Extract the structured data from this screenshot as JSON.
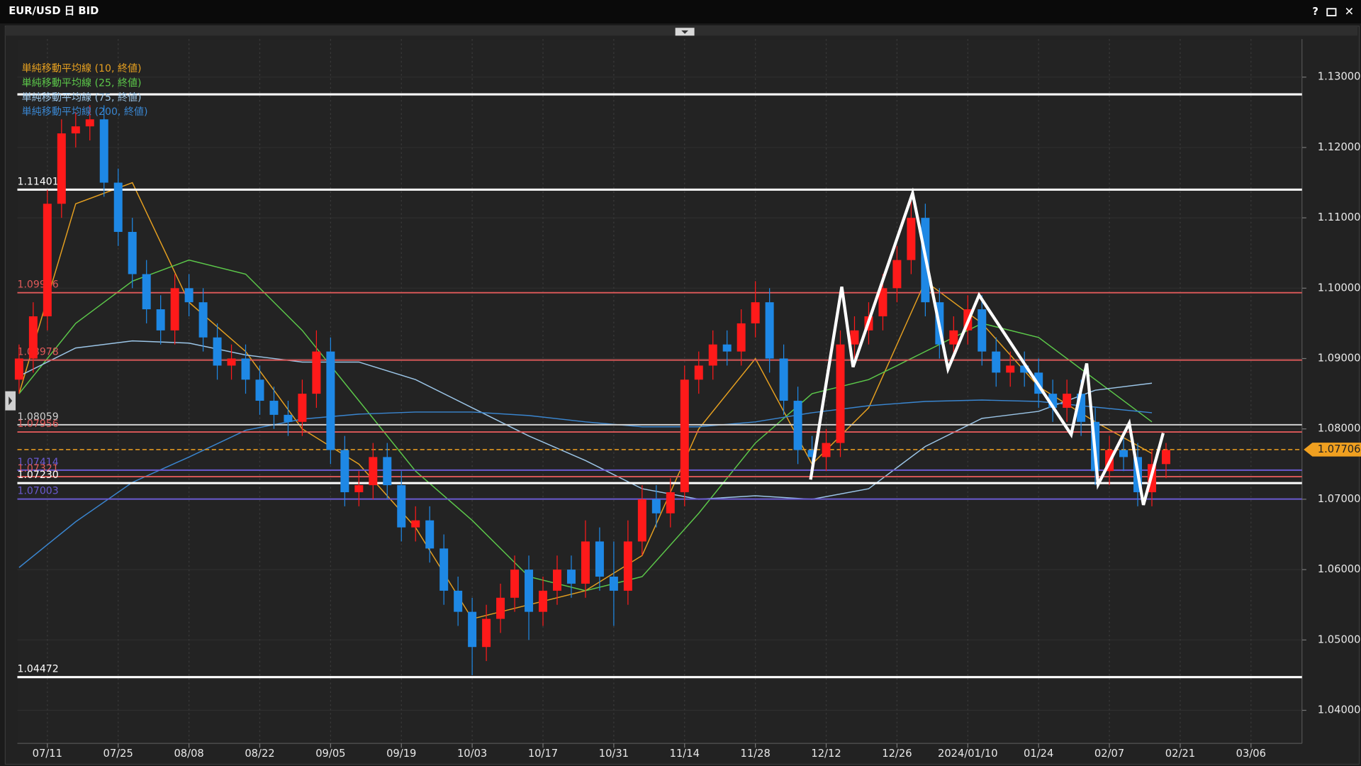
{
  "chart_data": {
    "type": "candlestick",
    "title": "EUR/USD 日 BID",
    "up_color": "#ff1a1a",
    "down_color": "#1e88e5",
    "ylim": [
      1.0353,
      1.1354
    ],
    "xlim": [
      -0.12,
      90.6
    ],
    "grid": true,
    "yticks": [
      {
        "value": 1.04,
        "label": "1.04000"
      },
      {
        "value": 1.05,
        "label": "1.05000"
      },
      {
        "value": 1.06,
        "label": "1.06000"
      },
      {
        "value": 1.07,
        "label": "1.07000"
      },
      {
        "value": 1.08,
        "label": "1.08000"
      },
      {
        "value": 1.09,
        "label": "1.09000"
      },
      {
        "value": 1.1,
        "label": "1.10000"
      },
      {
        "value": 1.11,
        "label": "1.11000"
      },
      {
        "value": 1.12,
        "label": "1.12000"
      },
      {
        "value": 1.13,
        "label": "1.13000"
      }
    ],
    "xticks": [
      {
        "value": 2,
        "label": "07/11"
      },
      {
        "value": 7,
        "label": "07/25"
      },
      {
        "value": 12,
        "label": "08/08"
      },
      {
        "value": 17,
        "label": "08/22"
      },
      {
        "value": 22,
        "label": "09/05"
      },
      {
        "value": 27,
        "label": "09/19"
      },
      {
        "value": 32,
        "label": "10/03"
      },
      {
        "value": 37,
        "label": "10/17"
      },
      {
        "value": 42,
        "label": "10/31"
      },
      {
        "value": 47,
        "label": "11/14"
      },
      {
        "value": 52,
        "label": "11/28"
      },
      {
        "value": 57,
        "label": "12/12"
      },
      {
        "value": 62,
        "label": "12/26"
      },
      {
        "value": 67,
        "label": "2024/01/10"
      },
      {
        "value": 72,
        "label": "01/24"
      },
      {
        "value": 77,
        "label": "02/07"
      },
      {
        "value": 82,
        "label": "02/21"
      },
      {
        "value": 87,
        "label": "03/06"
      }
    ],
    "candles": [
      [
        1.087,
        1.092,
        1.085,
        1.09
      ],
      [
        1.09,
        1.098,
        1.088,
        1.096
      ],
      [
        1.096,
        1.114,
        1.094,
        1.112
      ],
      [
        1.112,
        1.124,
        1.11,
        1.122
      ],
      [
        1.122,
        1.125,
        1.12,
        1.123
      ],
      [
        1.123,
        1.126,
        1.121,
        1.124
      ],
      [
        1.124,
        1.126,
        1.113,
        1.115
      ],
      [
        1.115,
        1.117,
        1.106,
        1.108
      ],
      [
        1.108,
        1.11,
        1.1,
        1.102
      ],
      [
        1.102,
        1.104,
        1.095,
        1.097
      ],
      [
        1.097,
        1.099,
        1.092,
        1.094
      ],
      [
        1.094,
        1.102,
        1.092,
        1.1
      ],
      [
        1.1,
        1.102,
        1.096,
        1.098
      ],
      [
        1.098,
        1.1,
        1.091,
        1.093
      ],
      [
        1.093,
        1.095,
        1.087,
        1.089
      ],
      [
        1.089,
        1.092,
        1.087,
        1.09
      ],
      [
        1.09,
        1.092,
        1.085,
        1.087
      ],
      [
        1.087,
        1.089,
        1.082,
        1.084
      ],
      [
        1.084,
        1.086,
        1.08,
        1.082
      ],
      [
        1.082,
        1.084,
        1.079,
        1.081
      ],
      [
        1.081,
        1.087,
        1.079,
        1.085
      ],
      [
        1.085,
        1.094,
        1.083,
        1.091
      ],
      [
        1.091,
        1.093,
        1.075,
        1.077
      ],
      [
        1.077,
        1.079,
        1.069,
        1.071
      ],
      [
        1.071,
        1.074,
        1.069,
        1.072
      ],
      [
        1.072,
        1.078,
        1.07,
        1.076
      ],
      [
        1.076,
        1.078,
        1.07,
        1.072
      ],
      [
        1.072,
        1.074,
        1.064,
        1.066
      ],
      [
        1.066,
        1.069,
        1.064,
        1.067
      ],
      [
        1.067,
        1.069,
        1.061,
        1.063
      ],
      [
        1.063,
        1.065,
        1.055,
        1.057
      ],
      [
        1.057,
        1.059,
        1.052,
        1.054
      ],
      [
        1.054,
        1.056,
        1.045,
        1.049
      ],
      [
        1.049,
        1.055,
        1.047,
        1.053
      ],
      [
        1.053,
        1.058,
        1.051,
        1.056
      ],
      [
        1.056,
        1.062,
        1.054,
        1.06
      ],
      [
        1.06,
        1.062,
        1.05,
        1.054
      ],
      [
        1.054,
        1.059,
        1.052,
        1.057
      ],
      [
        1.057,
        1.062,
        1.055,
        1.06
      ],
      [
        1.06,
        1.062,
        1.056,
        1.058
      ],
      [
        1.058,
        1.067,
        1.056,
        1.064
      ],
      [
        1.064,
        1.066,
        1.057,
        1.059
      ],
      [
        1.059,
        1.064,
        1.052,
        1.057
      ],
      [
        1.057,
        1.067,
        1.055,
        1.064
      ],
      [
        1.064,
        1.072,
        1.062,
        1.07
      ],
      [
        1.07,
        1.072,
        1.066,
        1.068
      ],
      [
        1.068,
        1.073,
        1.066,
        1.071
      ],
      [
        1.071,
        1.089,
        1.069,
        1.087
      ],
      [
        1.087,
        1.091,
        1.085,
        1.089
      ],
      [
        1.089,
        1.094,
        1.087,
        1.092
      ],
      [
        1.092,
        1.094,
        1.089,
        1.091
      ],
      [
        1.091,
        1.097,
        1.089,
        1.095
      ],
      [
        1.095,
        1.101,
        1.093,
        1.098
      ],
      [
        1.098,
        1.1,
        1.088,
        1.09
      ],
      [
        1.09,
        1.092,
        1.082,
        1.084
      ],
      [
        1.084,
        1.086,
        1.075,
        1.077
      ],
      [
        1.077,
        1.079,
        1.074,
        1.076
      ],
      [
        1.076,
        1.08,
        1.074,
        1.078
      ],
      [
        1.078,
        1.094,
        1.076,
        1.092
      ],
      [
        1.092,
        1.096,
        1.09,
        1.094
      ],
      [
        1.094,
        1.098,
        1.092,
        1.096
      ],
      [
        1.096,
        1.102,
        1.094,
        1.1
      ],
      [
        1.1,
        1.106,
        1.098,
        1.104
      ],
      [
        1.104,
        1.113,
        1.102,
        1.11
      ],
      [
        1.11,
        1.112,
        1.096,
        1.098
      ],
      [
        1.098,
        1.1,
        1.09,
        1.092
      ],
      [
        1.092,
        1.096,
        1.09,
        1.094
      ],
      [
        1.094,
        1.099,
        1.092,
        1.097
      ],
      [
        1.097,
        1.099,
        1.089,
        1.091
      ],
      [
        1.091,
        1.093,
        1.086,
        1.088
      ],
      [
        1.088,
        1.091,
        1.086,
        1.089
      ],
      [
        1.089,
        1.091,
        1.086,
        1.088
      ],
      [
        1.088,
        1.09,
        1.083,
        1.085
      ],
      [
        1.085,
        1.087,
        1.081,
        1.083
      ],
      [
        1.083,
        1.087,
        1.081,
        1.085
      ],
      [
        1.085,
        1.087,
        1.079,
        1.081
      ],
      [
        1.081,
        1.083,
        1.072,
        1.074
      ],
      [
        1.074,
        1.079,
        1.072,
        1.077
      ],
      [
        1.077,
        1.079,
        1.074,
        1.076
      ],
      [
        1.076,
        1.078,
        1.069,
        1.071
      ],
      [
        1.071,
        1.077,
        1.069,
        1.075
      ],
      [
        1.075,
        1.078,
        1.073,
        1.077
      ]
    ],
    "series": [
      {
        "name": "単純移動平均線 (10, 終値)",
        "color": "#e6a020",
        "x": [
          0,
          4,
          8,
          12,
          16,
          20,
          24,
          28,
          32,
          36,
          40,
          44,
          48,
          52,
          56,
          60,
          64,
          68,
          72,
          76,
          80
        ],
        "values": [
          1.085,
          1.112,
          1.115,
          1.098,
          1.091,
          1.08,
          1.075,
          1.066,
          1.053,
          1.055,
          1.057,
          1.062,
          1.08,
          1.09,
          1.075,
          1.083,
          1.101,
          1.095,
          1.086,
          1.081,
          1.0765
        ]
      },
      {
        "name": "単純移動平均線 (25, 終値)",
        "color": "#5cc84a",
        "x": [
          0,
          4,
          8,
          12,
          16,
          20,
          24,
          28,
          32,
          36,
          40,
          44,
          48,
          52,
          56,
          60,
          64,
          68,
          72,
          76,
          80
        ],
        "values": [
          1.085,
          1.095,
          1.101,
          1.104,
          1.102,
          1.094,
          1.084,
          1.074,
          1.067,
          1.059,
          1.057,
          1.059,
          1.068,
          1.078,
          1.085,
          1.087,
          1.091,
          1.095,
          1.093,
          1.087,
          1.081
        ]
      },
      {
        "name": "単純移動平均線 (75, 終値)",
        "color": "#9cc6e8",
        "x": [
          0,
          4,
          8,
          12,
          16,
          20,
          24,
          28,
          32,
          36,
          40,
          44,
          48,
          52,
          56,
          60,
          64,
          68,
          72,
          76,
          80
        ],
        "values": [
          1.0875,
          1.0915,
          1.0925,
          1.0922,
          1.0905,
          1.0895,
          1.0895,
          1.087,
          1.083,
          1.079,
          1.0755,
          1.0715,
          1.07,
          1.0705,
          1.07,
          1.0715,
          1.0775,
          1.0815,
          1.0825,
          1.0855,
          1.0865
        ]
      },
      {
        "name": "単純移動平均線 (200, 終値)",
        "color": "#3a86d0",
        "x": [
          0,
          4,
          8,
          12,
          16,
          20,
          24,
          28,
          32,
          36,
          40,
          44,
          48,
          52,
          56,
          60,
          64,
          68,
          72,
          76,
          80
        ],
        "values": [
          1.0603,
          1.0668,
          1.0724,
          1.076,
          1.0798,
          1.0814,
          1.0821,
          1.0824,
          1.0824,
          1.0819,
          1.081,
          1.0803,
          1.0803,
          1.081,
          1.0823,
          1.0833,
          1.0839,
          1.0841,
          1.0839,
          1.0831,
          1.0823
        ]
      }
    ],
    "levels": [
      {
        "value": 1.12755,
        "color": "#ffffff"
      },
      {
        "value": 1.11401,
        "color": "#ffffff"
      },
      {
        "value": 1.09936,
        "color": "#e05a5a"
      },
      {
        "value": 1.08978,
        "color": "#e05a5a"
      },
      {
        "value": 1.08059,
        "color": "#d0d0d0"
      },
      {
        "value": 1.07956,
        "color": "#e05a5a"
      },
      {
        "value": 1.07414,
        "color": "#6a5ad0"
      },
      {
        "value": 1.07321,
        "color": "#e05a5a"
      },
      {
        "value": 1.0723,
        "label": "1.07230",
        "color": "#ffffff"
      },
      {
        "value": 1.07003,
        "color": "#6a5ad0"
      },
      {
        "value": 1.04472,
        "color": "#ffffff"
      }
    ],
    "current_price": {
      "value": 1.07706,
      "color": "#f0a020"
    },
    "zigzag": {
      "x": [
        55.9,
        58.1,
        58.9,
        63.1,
        65.6,
        67.8,
        74.3,
        75.4,
        76.2,
        78.4,
        79.4,
        80.8
      ],
      "values": [
        1.0728,
        1.1002,
        1.0888,
        1.1135,
        1.0885,
        1.099,
        1.0792,
        1.0893,
        1.0721,
        1.0808,
        1.0692,
        1.0794
      ],
      "color": "#ffffff"
    }
  }
}
